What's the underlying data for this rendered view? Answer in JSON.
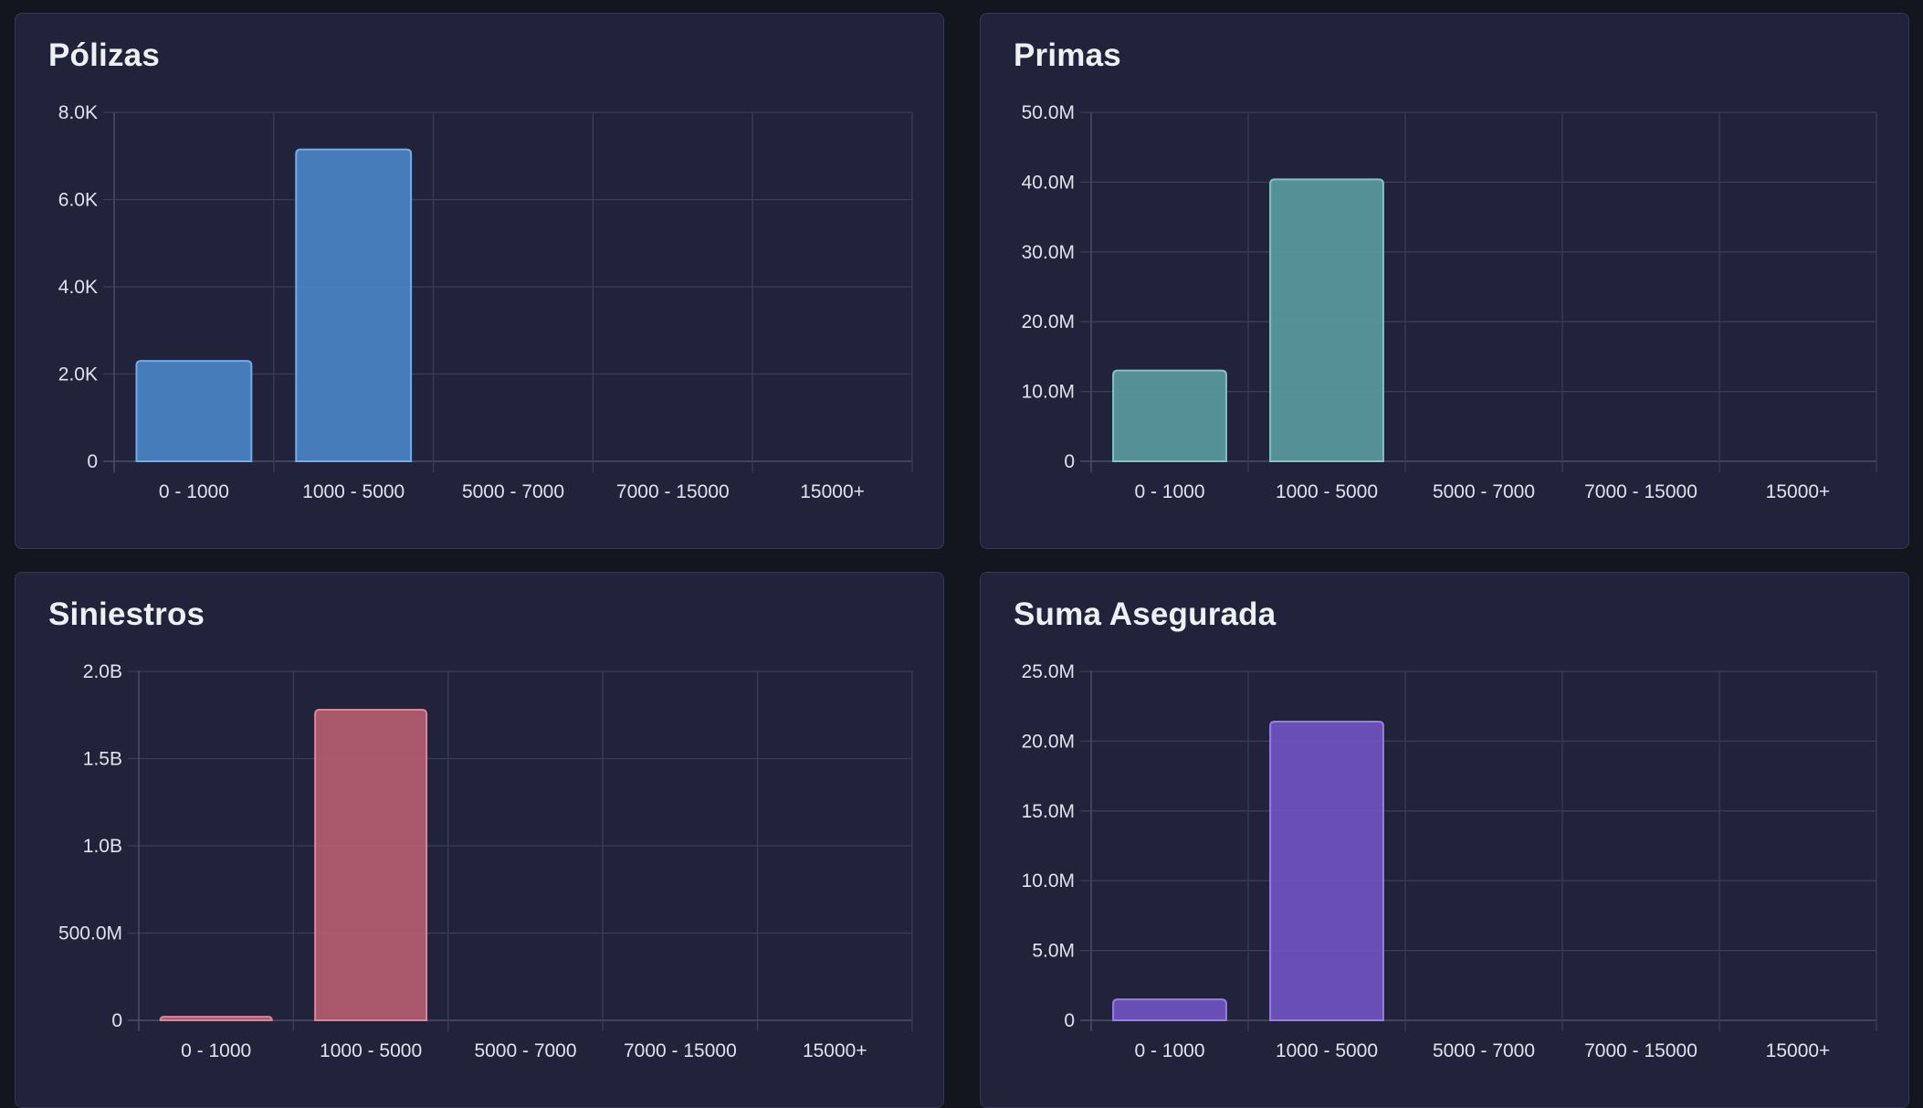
{
  "chart_data": [
    {
      "type": "bar",
      "title": "Pólizas",
      "categories": [
        "0 - 1000",
        "1000 - 5000",
        "5000 - 7000",
        "7000 - 15000",
        "15000+"
      ],
      "values": [
        2300,
        7150,
        0,
        0,
        0
      ],
      "ylim": [
        0,
        8000
      ],
      "yticks": [
        0,
        2000,
        4000,
        6000,
        8000
      ],
      "ytick_labels": [
        "0",
        "2.0K",
        "4.0K",
        "6.0K",
        "8.0K"
      ],
      "xlabel": "",
      "ylabel": "",
      "grid": true,
      "color": "#4a84c4"
    },
    {
      "type": "bar",
      "title": "Primas",
      "categories": [
        "0 - 1000",
        "1000 - 5000",
        "5000 - 7000",
        "7000 - 15000",
        "15000+"
      ],
      "values": [
        13000000,
        40400000,
        0,
        0,
        0
      ],
      "ylim": [
        0,
        50000000
      ],
      "yticks": [
        0,
        10000000,
        20000000,
        30000000,
        40000000,
        50000000
      ],
      "ytick_labels": [
        "0",
        "10.0M",
        "20.0M",
        "30.0M",
        "40.0M",
        "50.0M"
      ],
      "xlabel": "",
      "ylabel": "",
      "grid": true,
      "color": "#5a9a9e"
    },
    {
      "type": "bar",
      "title": "Siniestros",
      "categories": [
        "0 - 1000",
        "1000 - 5000",
        "5000 - 7000",
        "7000 - 15000",
        "15000+"
      ],
      "values": [
        20000000,
        1780000000,
        0,
        0,
        0
      ],
      "ylim": [
        0,
        2000000000
      ],
      "yticks": [
        0,
        500000000,
        1000000000,
        1500000000,
        2000000000
      ],
      "ytick_labels": [
        "0",
        "500.0M",
        "1.0B",
        "1.5B",
        "2.0B"
      ],
      "xlabel": "",
      "ylabel": "",
      "grid": true,
      "color": "#b55d70"
    },
    {
      "type": "bar",
      "title": "Suma Asegurada",
      "categories": [
        "0 - 1000",
        "1000 - 5000",
        "5000 - 7000",
        "7000 - 15000",
        "15000+"
      ],
      "values": [
        1500000,
        21400000,
        0,
        0,
        0
      ],
      "ylim": [
        0,
        25000000
      ],
      "yticks": [
        0,
        5000000,
        10000000,
        15000000,
        20000000,
        25000000
      ],
      "ytick_labels": [
        "0",
        "5.0M",
        "10.0M",
        "15.0M",
        "20.0M",
        "25.0M"
      ],
      "xlabel": "",
      "ylabel": "",
      "grid": true,
      "color": "#7054c0"
    }
  ]
}
